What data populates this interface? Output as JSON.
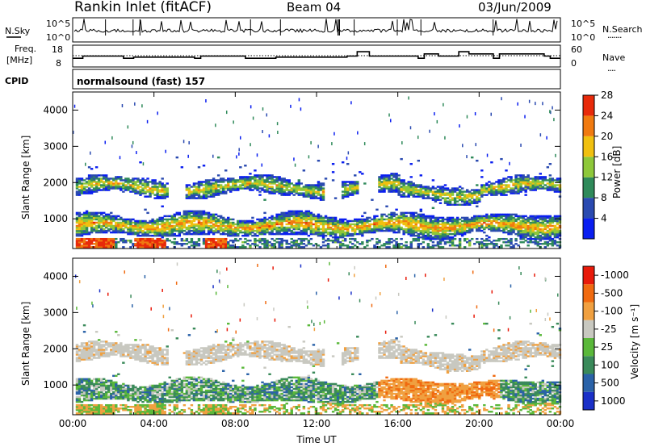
{
  "header": {
    "station": "Rankin Inlet (fitACF)",
    "beam": "Beam 04",
    "date": "03/Jun/2009"
  },
  "nsky_panel": {
    "left_label": "N.Sky",
    "left_top_tick": "10^5",
    "left_bottom_tick": "10^0",
    "right_top_tick": "10^5",
    "right_bottom_tick": "10^0",
    "right_label": "N.Search",
    "right_legend_dots": "......."
  },
  "freq_panel": {
    "label_line1": "Freq.",
    "label_line2": "[MHz]",
    "left_top_tick": "18",
    "left_bottom_tick": "8",
    "right_top_tick": "60",
    "right_bottom_tick": "0",
    "right_label": "Nave",
    "right_legend_dots": "...."
  },
  "cpid": {
    "label": "CPID",
    "value": "normalsound (fast) 157"
  },
  "power_colorbar": {
    "label": "Power [dB]",
    "ticks": [
      "4",
      "8",
      "12",
      "16",
      "20",
      "24",
      "28"
    ],
    "colors": [
      "#0a1ef0",
      "#2a4ab0",
      "#2f8a5a",
      "#8ec83a",
      "#f0c010",
      "#f07a10",
      "#e82a0a"
    ]
  },
  "velocity_colorbar": {
    "label": "Velocity [m s⁻¹]",
    "ticks": [
      "1000",
      "500",
      "100",
      "25",
      "-25",
      "-100",
      "-500",
      "-1000"
    ],
    "colors": [
      "#1a30c8",
      "#2a62a8",
      "#3a8a5a",
      "#5ab83a",
      "#c8c8c0",
      "#f0a040",
      "#f06a10",
      "#e81a0a"
    ]
  },
  "chart_data": [
    {
      "type": "heatmap",
      "title": "Power",
      "xlabel": "",
      "ylabel": "Slant Range [km]",
      "xlim": [
        0,
        24
      ],
      "ylim": [
        180,
        4500
      ],
      "x_ticks": [
        "00:00",
        "04:00",
        "08:00",
        "12:00",
        "16:00",
        "20:00",
        "00:00"
      ],
      "y_ticks": [
        "1000",
        "2000",
        "3000",
        "4000"
      ],
      "bands": [
        {
          "name": "near range",
          "range_km": [
            200,
            450
          ],
          "strongest": "00:00-02:00, 03:00-04:30, 06:30-07:30",
          "value_db": 28
        },
        {
          "name": "lower band",
          "range_km": [
            400,
            1200
          ],
          "value_db": 16
        },
        {
          "name": "upper band",
          "range_km": [
            1400,
            2300
          ],
          "value_db": 12
        }
      ]
    },
    {
      "type": "heatmap",
      "title": "Velocity",
      "xlabel": "Time UT",
      "ylabel": "Slant Range [km]",
      "xlim": [
        0,
        24
      ],
      "ylim": [
        180,
        4500
      ],
      "x_ticks": [
        "00:00",
        "04:00",
        "08:00",
        "12:00",
        "16:00",
        "20:00",
        "00:00"
      ],
      "y_ticks": [
        "1000",
        "2000",
        "3000",
        "4000"
      ],
      "bands": [
        {
          "name": "upper band",
          "range_km": [
            1400,
            2300
          ],
          "value_ms": 0
        },
        {
          "name": "lower band",
          "range_km": [
            400,
            1200
          ],
          "value_ms": 100
        },
        {
          "name": "afternoon arc",
          "range_km": [
            500,
            1400
          ],
          "time_ut": "15:00-21:00",
          "value_ms": -300
        }
      ]
    },
    {
      "type": "line",
      "title": "N.Sky",
      "ylim": [
        0,
        5
      ],
      "note": "log10 noise, approximately 1-2 with spikes"
    },
    {
      "type": "line",
      "title": "Freq.",
      "ylim": [
        8,
        18
      ],
      "x": [
        0,
        0.5,
        2.5,
        3,
        6,
        6.3,
        8.5,
        9,
        10,
        13.5,
        14,
        14.6,
        17,
        17.3,
        18,
        19,
        19.5,
        20.7,
        21,
        23.2,
        23.5,
        24
      ],
      "values": [
        12,
        13,
        12,
        12.5,
        12,
        13,
        12,
        12,
        12.5,
        13,
        15,
        13,
        12,
        14,
        13,
        15,
        14,
        12,
        14,
        13,
        12,
        12
      ]
    }
  ]
}
